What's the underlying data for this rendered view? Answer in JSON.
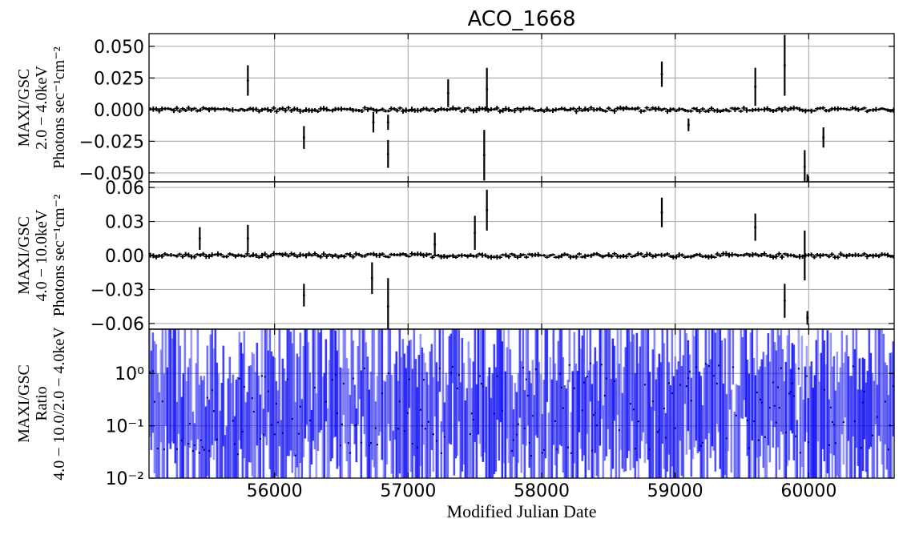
{
  "chart_data": [
    {
      "type": "scatter",
      "title": "ACO_1668",
      "ylabel_lines": [
        "MAXI/GSC",
        "2.0 − 4.0keV",
        "Photons sec⁻¹cm⁻²"
      ],
      "ylim": [
        -0.057,
        0.06
      ],
      "yticks": [
        0.05,
        0.025,
        0.0,
        -0.025,
        -0.05
      ],
      "ytick_labels": [
        "0.050",
        "0.025",
        "0.000",
        "−0.025",
        "−0.050"
      ],
      "grid": true,
      "color": "#000000",
      "series": [
        {
          "x": [
            55800,
            56220,
            56740,
            56850,
            56850,
            57300,
            57570,
            57590,
            58900,
            59100,
            59600,
            59820,
            59970,
            59990,
            60110
          ],
          "y": [
            0.023,
            -0.022,
            -0.01,
            -0.035,
            -0.01,
            0.013,
            -0.036,
            0.016,
            0.028,
            -0.012,
            0.018,
            0.035,
            -0.045,
            -0.057,
            -0.022
          ],
          "err": [
            0.012,
            0.009,
            0.008,
            0.011,
            0.006,
            0.011,
            0.02,
            0.017,
            0.01,
            0.005,
            0.015,
            0.024,
            0.013,
            0.006,
            0.008
          ]
        }
      ]
    },
    {
      "type": "scatter",
      "ylabel_lines": [
        "MAXI/GSC",
        "4.0 − 10.0keV",
        "Photons sec⁻¹cm⁻²"
      ],
      "ylim": [
        -0.065,
        0.065
      ],
      "yticks": [
        0.06,
        0.03,
        0.0,
        -0.03,
        -0.06
      ],
      "ytick_labels": [
        "0.06",
        "0.03",
        "0.00",
        "−0.03",
        "−0.06"
      ],
      "grid": true,
      "color": "#000000",
      "series": [
        {
          "x": [
            55440,
            55800,
            56220,
            56730,
            56850,
            57200,
            57500,
            57590,
            58900,
            59600,
            59820,
            59970,
            59990
          ],
          "y": [
            0.015,
            0.015,
            -0.035,
            -0.02,
            -0.045,
            0.01,
            0.02,
            0.04,
            0.038,
            0.025,
            -0.04,
            0.0,
            -0.055
          ],
          "err": [
            0.01,
            0.012,
            0.01,
            0.014,
            0.025,
            0.01,
            0.015,
            0.018,
            0.013,
            0.012,
            0.015,
            0.022,
            0.006
          ]
        }
      ]
    },
    {
      "type": "scatter",
      "ylabel_lines": [
        "MAXI/GSC",
        "Ratio",
        "4.0 − 10.0/2.0 − 4.0keV"
      ],
      "yscale": "log",
      "ylim": [
        0.01,
        7
      ],
      "yticks": [
        1,
        0.1,
        0.01
      ],
      "ytick_labels": [
        "10⁰",
        "10⁻¹",
        "10⁻²"
      ],
      "grid": true,
      "color": "#0000ff"
    }
  ],
  "xaxis": {
    "label": "Modified Julian Date",
    "xlim": [
      55060,
      60640
    ],
    "ticks": [
      56000,
      57000,
      58000,
      59000,
      60000
    ],
    "tick_labels": [
      "56000",
      "57000",
      "58000",
      "59000",
      "60000"
    ]
  }
}
